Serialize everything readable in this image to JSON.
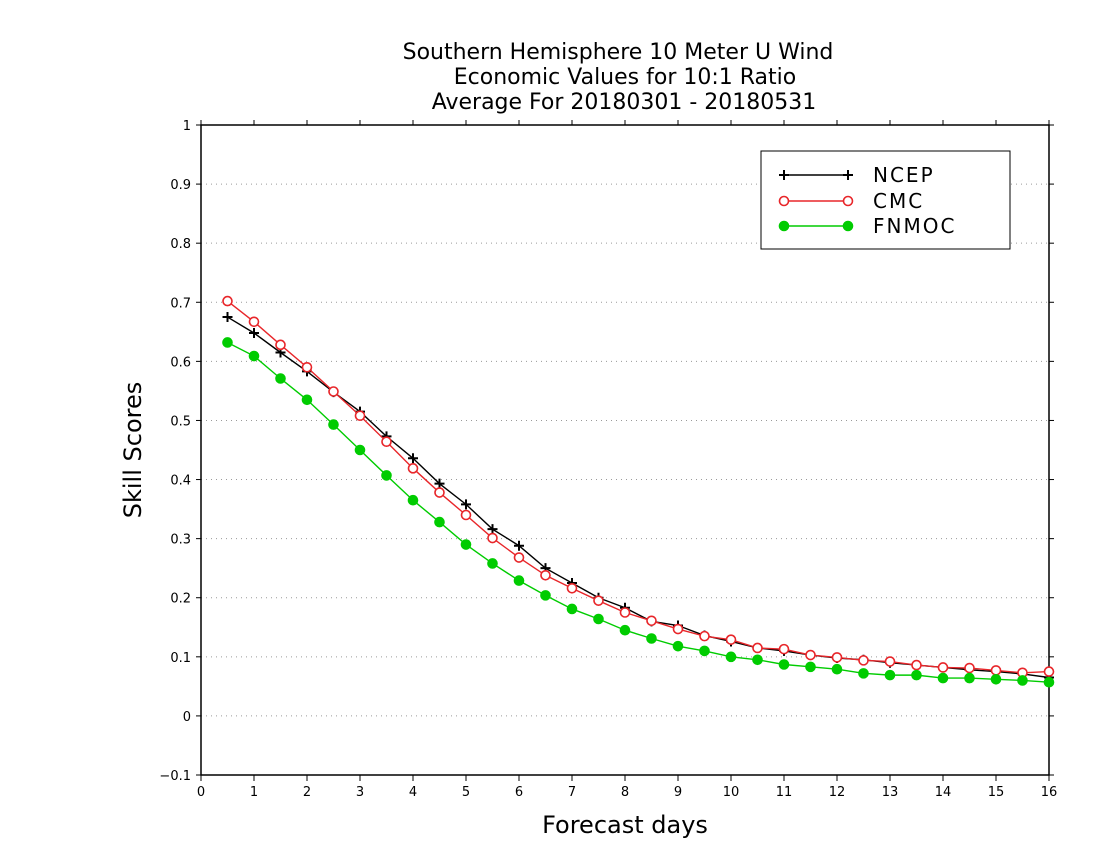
{
  "chart_data": {
    "type": "line",
    "title": [
      "Southern Hemisphere 10 Meter U Wind",
      "Economic Values for 10:1 Ratio",
      "Average For 20180301 - 20180531"
    ],
    "xlabel": "Forecast days",
    "ylabel": "Skill Scores",
    "xlim": [
      0,
      16
    ],
    "ylim": [
      -0.1,
      1
    ],
    "x_ticks": [
      0,
      1,
      2,
      3,
      4,
      5,
      6,
      7,
      8,
      9,
      10,
      11,
      12,
      13,
      14,
      15,
      16
    ],
    "x_tick_labels": [
      "0",
      "1",
      "2",
      "3",
      "4",
      "5",
      "6",
      "7",
      "8",
      "9",
      "10",
      "11",
      "12",
      "13",
      "14",
      "15",
      "16"
    ],
    "y_ticks": [
      -0.1,
      0,
      0.1,
      0.2,
      0.3,
      0.4,
      0.5,
      0.6,
      0.7,
      0.8,
      0.9,
      1
    ],
    "y_tick_labels": [
      "−0.1",
      "0",
      "0.1",
      "0.2",
      "0.3",
      "0.4",
      "0.5",
      "0.6",
      "0.7",
      "0.8",
      "0.9",
      "1"
    ],
    "grid": true,
    "legend_position": "top-right",
    "x": [
      0.5,
      1,
      1.5,
      2,
      2.5,
      3,
      3.5,
      4,
      4.5,
      5,
      5.5,
      6,
      6.5,
      7,
      7.5,
      8,
      8.5,
      9,
      9.5,
      10,
      10.5,
      11,
      11.5,
      12,
      12.5,
      13,
      13.5,
      14,
      14.5,
      15,
      15.5,
      16
    ],
    "series": [
      {
        "name": "NCEP",
        "color": "#000000",
        "marker": "plus",
        "values": [
          0.675,
          0.648,
          0.615,
          0.583,
          0.548,
          0.515,
          0.473,
          0.436,
          0.393,
          0.358,
          0.316,
          0.288,
          0.25,
          0.225,
          0.2,
          0.183,
          0.16,
          0.153,
          0.136,
          0.126,
          0.115,
          0.11,
          0.103,
          0.098,
          0.095,
          0.09,
          0.086,
          0.082,
          0.078,
          0.075,
          0.071,
          0.065
        ]
      },
      {
        "name": "CMC",
        "color": "#e8262a",
        "marker": "open-circle",
        "values": [
          0.702,
          0.667,
          0.628,
          0.59,
          0.549,
          0.508,
          0.464,
          0.419,
          0.378,
          0.34,
          0.301,
          0.268,
          0.238,
          0.216,
          0.195,
          0.175,
          0.161,
          0.147,
          0.135,
          0.129,
          0.115,
          0.113,
          0.103,
          0.099,
          0.094,
          0.092,
          0.086,
          0.082,
          0.081,
          0.077,
          0.073,
          0.075
        ]
      },
      {
        "name": "FNMOC",
        "color": "#00cc00",
        "marker": "filled-circle",
        "values": [
          0.632,
          0.609,
          0.571,
          0.535,
          0.493,
          0.45,
          0.407,
          0.365,
          0.328,
          0.29,
          0.258,
          0.229,
          0.204,
          0.181,
          0.164,
          0.145,
          0.131,
          0.118,
          0.11,
          0.1,
          0.095,
          0.087,
          0.083,
          0.079,
          0.072,
          0.069,
          0.069,
          0.064,
          0.064,
          0.062,
          0.06,
          0.057
        ]
      }
    ]
  }
}
